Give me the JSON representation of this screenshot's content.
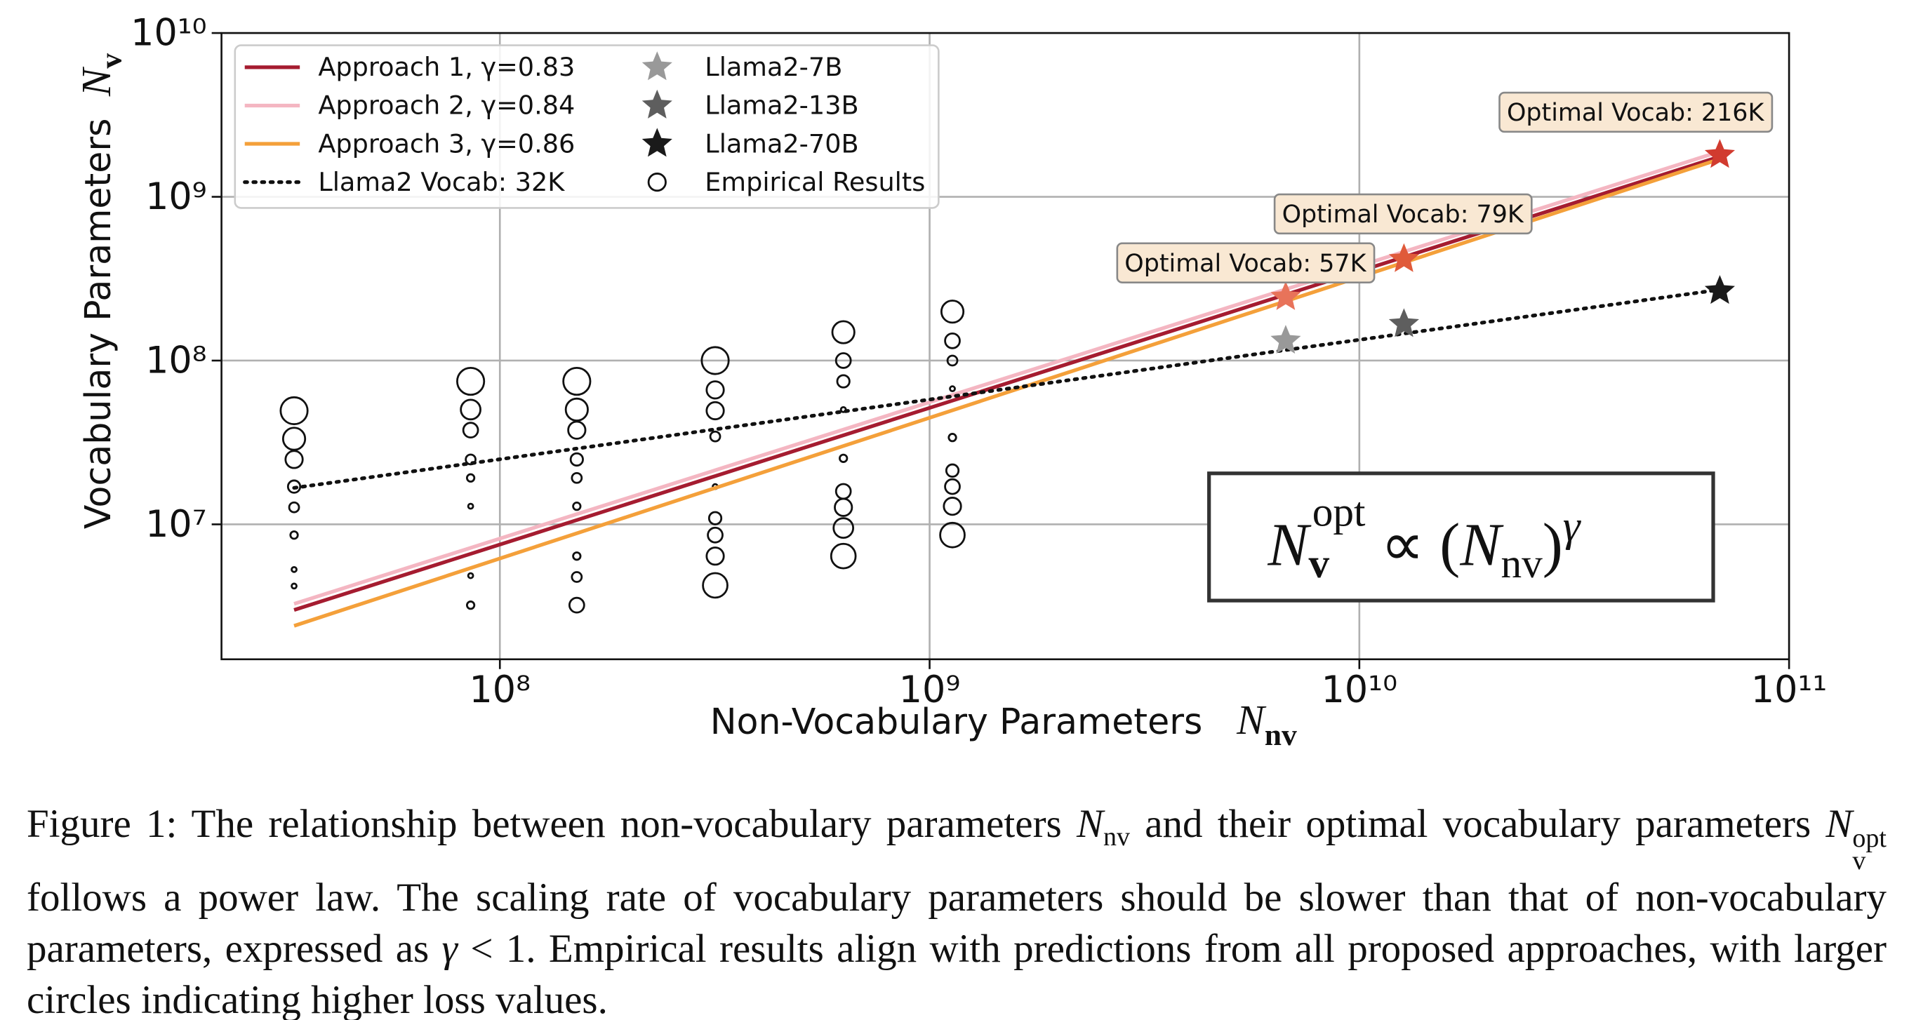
{
  "chart_data": {
    "type": "scatter",
    "xlabel": {
      "text": "Non-Vocabulary Parameters",
      "symbol": "N",
      "symbol_sub": "nv"
    },
    "ylabel": {
      "text": "Vocabulary Parameters",
      "symbol": "N",
      "symbol_sub": "v"
    },
    "xscale": "log",
    "yscale": "log",
    "grid": true,
    "legend_loc": "upper left",
    "xlim": [
      22500000,
      100000000000
    ],
    "ylim": [
      1500000,
      10000000000
    ],
    "xticks": [
      {
        "value": 100000000,
        "label": "10⁸"
      },
      {
        "value": 1000000000,
        "label": "10⁹"
      },
      {
        "value": 10000000000,
        "label": "10¹⁰"
      },
      {
        "value": 100000000000,
        "label": "10¹¹"
      }
    ],
    "yticks": [
      {
        "value": 10000000,
        "label": "10⁷"
      },
      {
        "value": 100000000,
        "label": "10⁸"
      },
      {
        "value": 1000000000,
        "label": "10⁹"
      },
      {
        "value": 10000000000,
        "label": "10¹⁰"
      }
    ],
    "series": [
      {
        "name": "Approach 1, γ=0.83",
        "color": "#a51c30",
        "marker": "line",
        "linestyle": "solid",
        "x": [
          33200000,
          69000000000
        ],
        "values": [
          3000000,
          1760000000
        ]
      },
      {
        "name": "Approach 2, γ=0.84",
        "color": "#f4b6c2",
        "marker": "line",
        "linestyle": "solid",
        "x": [
          33200000,
          69000000000
        ],
        "values": [
          3270000,
          1890000000
        ]
      },
      {
        "name": "Approach 3, γ=0.86",
        "color": "#f4a03a",
        "marker": "line",
        "linestyle": "solid",
        "x": [
          33200000,
          69000000000
        ],
        "values": [
          2400000,
          1700000000
        ]
      },
      {
        "name": "Llama2 Vocab: 32K",
        "color": "#111111",
        "marker": "line",
        "linestyle": "dotted",
        "x": [
          33200000,
          69000000000
        ],
        "values": [
          16700000,
          271000000
        ]
      },
      {
        "name": "Llama2-7B",
        "color": "#999999",
        "marker": "star",
        "x": [
          6740000000
        ],
        "values": [
          132000000
        ]
      },
      {
        "name": "Llama2-13B",
        "color": "#5e5e5e",
        "marker": "star",
        "x": [
          12700000000
        ],
        "values": [
          167000000
        ]
      },
      {
        "name": "Llama2-70B",
        "color": "#1a1a1a",
        "marker": "star",
        "x": [
          69000000000
        ],
        "values": [
          266000000
        ]
      },
      {
        "name": "Empirical Results",
        "color": "#111111",
        "marker": "circle",
        "x": [
          33200000,
          33200000,
          33200000,
          33200000,
          33200000,
          33200000,
          33200000,
          33200000,
          85500000,
          85500000,
          85500000,
          85500000,
          85500000,
          85500000,
          85500000,
          85500000,
          151000000,
          151000000,
          151000000,
          151000000,
          151000000,
          151000000,
          151000000,
          151000000,
          151000000,
          317000000,
          317000000,
          317000000,
          317000000,
          317000000,
          317000000,
          317000000,
          317000000,
          317000000,
          630000000,
          630000000,
          630000000,
          630000000,
          630000000,
          630000000,
          630000000,
          630000000,
          630000000,
          1130000000,
          1130000000,
          1130000000,
          1130000000,
          1130000000,
          1130000000,
          1130000000,
          1130000000,
          1130000000
        ],
        "values": [
          49400000,
          33300000,
          24900000,
          17000000,
          12700000,
          8600000,
          5300000,
          4200000,
          74700000,
          50200000,
          37600000,
          24900000,
          19200000,
          12900000,
          4860000,
          3210000,
          74700000,
          50200000,
          37600000,
          24900000,
          19200000,
          12900000,
          6400000,
          4770000,
          3210000,
          100000000,
          66200000,
          49400000,
          34400000,
          17000000,
          10900000,
          8600000,
          6400000,
          4240000,
          149000000,
          100000000,
          74700000,
          50200000,
          25300000,
          15900000,
          12700000,
          9500000,
          6400000,
          199000000,
          132000000,
          100000000,
          67300000,
          33900000,
          21300000,
          17000000,
          12900000,
          8600000
        ],
        "sizes": [
          11,
          9,
          7,
          5,
          4,
          3,
          2,
          2,
          11,
          8,
          6,
          4,
          3,
          2,
          2,
          3,
          11,
          9,
          7,
          5,
          4,
          3,
          3,
          4,
          6,
          11,
          7,
          7,
          4,
          2,
          5,
          6,
          7,
          10,
          9,
          6,
          5,
          2,
          3,
          6,
          7,
          8,
          10,
          9,
          6,
          4,
          2,
          3,
          5,
          6,
          7,
          10
        ]
      }
    ],
    "annotations": [
      {
        "text": "Optimal Vocab: 57K",
        "x": 6740000000,
        "y": 244000000,
        "color": "#e8735a"
      },
      {
        "text": "Optimal Vocab: 79K",
        "x": 12700000000,
        "y": 416000000,
        "color": "#e05a3a"
      },
      {
        "text": "Optimal Vocab: 216K",
        "x": 69000000000,
        "y": 1800000000,
        "color": "#d13b2f"
      }
    ],
    "formula": {
      "base": "N",
      "sup": "opt",
      "sub": "v",
      "middle": " ∝ (",
      "base2": "N",
      "sub2": "nv",
      "close": ")",
      "exp": "γ"
    }
  },
  "caption": [
    "Figure 1: The relationship between non-vocabulary parameters ",
    {
      "base": "N",
      "sub": "nv"
    },
    " and their optimal vocabulary parameters ",
    {
      "base": "N",
      "sub": "v",
      "sup": "opt"
    },
    " follows a power law. The scaling rate of vocabulary parameters should be slower than that of non-vocabulary parameters, expressed as ",
    {
      "base": "γ"
    },
    " < 1. Empirical results align with predictions from all proposed approaches, with larger circles indicating higher loss values."
  ]
}
